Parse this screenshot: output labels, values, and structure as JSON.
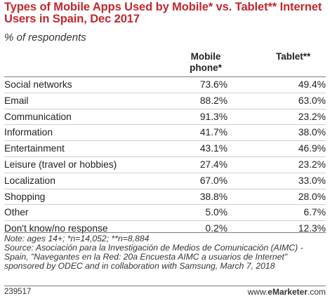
{
  "chart_data": {
    "type": "table",
    "title": "Types of Mobile Apps Used by Mobile* vs. Tablet** Internet Users in Spain, Dec 2017",
    "subtitle": "% of respondents",
    "columns": [
      "Mobile phone*",
      "Tablet**"
    ],
    "column_lines": [
      [
        "Mobile",
        "phone*"
      ],
      [
        "Tablet**"
      ]
    ],
    "rows": [
      {
        "label": "Social networks",
        "mobile": "73.6%",
        "tablet": "49.4%"
      },
      {
        "label": "Email",
        "mobile": "88.2%",
        "tablet": "63.0%"
      },
      {
        "label": "Communication",
        "mobile": "91.3%",
        "tablet": "23.2%"
      },
      {
        "label": "Information",
        "mobile": "41.7%",
        "tablet": "38.0%"
      },
      {
        "label": "Entertainment",
        "mobile": "43.1%",
        "tablet": "46.9%"
      },
      {
        "label": "Leisure (travel or hobbies)",
        "mobile": "27.4%",
        "tablet": "23.2%"
      },
      {
        "label": "Localization",
        "mobile": "67.0%",
        "tablet": "33.0%"
      },
      {
        "label": "Shopping",
        "mobile": "38.8%",
        "tablet": "28.0%"
      },
      {
        "label": "Other",
        "mobile": "5.0%",
        "tablet": "6.7%"
      },
      {
        "label": "Don't know/no response",
        "mobile": "0.2%",
        "tablet": "12.3%"
      }
    ],
    "note": "Note: ages 14+; *n=14,052; **n=8,884",
    "source": "Source: Asociación para la Investigación de Medios de Comunicación (AIMC) - Spain, \"Navegantes en la Red: 20a Encuesta AIMC a usuarios de Internet\" sponsored by ODEC and in collaboration with Samsung, March 7, 2018",
    "chart_id": "239517",
    "brand_prefix": "www.",
    "brand_name": "eMarketer",
    "brand_suffix": ".com"
  },
  "colors": {
    "title": "#c2272d",
    "rule": "#7a7a7a",
    "row_divider": "#cfcfcf"
  }
}
